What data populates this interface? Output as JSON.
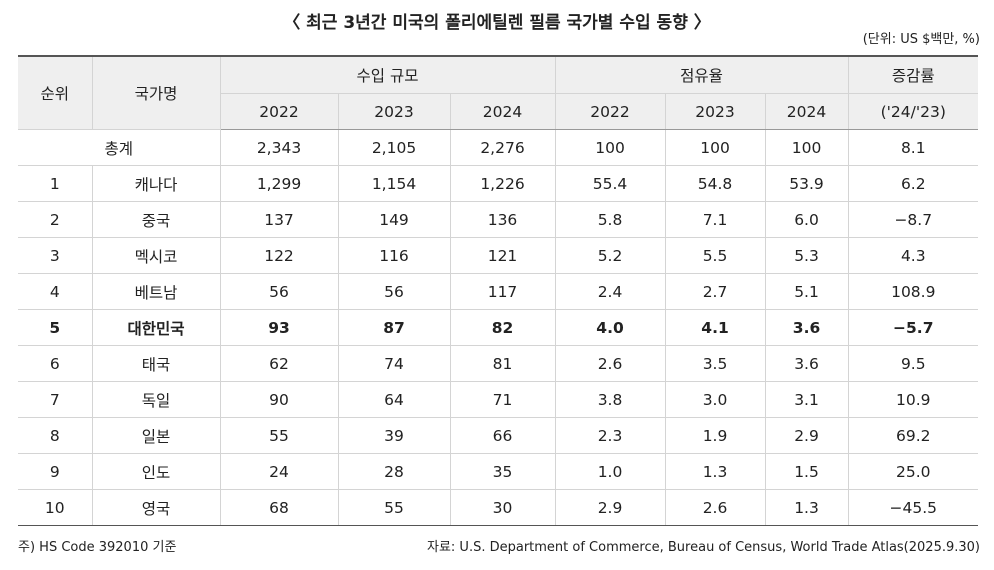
{
  "title": "〈 최근 3년간 미국의 폴리에틸렌 필름 국가별 수입 동향 〉",
  "unit": "(단위: US $백만, %)",
  "table": {
    "header": {
      "rank": "순위",
      "country": "국가명",
      "groups": [
        "수입 규모",
        "점유율",
        "증감률"
      ],
      "years": [
        "2022",
        "2023",
        "2024",
        "2022",
        "2023",
        "2024",
        "('24/'23)"
      ]
    },
    "total": {
      "label": "총계",
      "values": [
        "2,343",
        "2,105",
        "2,276",
        "100",
        "100",
        "100",
        "8.1"
      ]
    },
    "rows": [
      [
        "1",
        "캐나다",
        "1,299",
        "1,154",
        "1,226",
        "55.4",
        "54.8",
        "53.9",
        "6.2"
      ],
      [
        "2",
        "중국",
        "137",
        "149",
        "136",
        "5.8",
        "7.1",
        "6.0",
        "−8.7"
      ],
      [
        "3",
        "멕시코",
        "122",
        "116",
        "121",
        "5.2",
        "5.5",
        "5.3",
        "4.3"
      ],
      [
        "4",
        "베트남",
        "56",
        "56",
        "117",
        "2.4",
        "2.7",
        "5.1",
        "108.9"
      ],
      [
        "5",
        "대한민국",
        "93",
        "87",
        "82",
        "4.0",
        "4.1",
        "3.6",
        "−5.7"
      ],
      [
        "6",
        "태국",
        "62",
        "74",
        "81",
        "2.6",
        "3.5",
        "3.6",
        "9.5"
      ],
      [
        "7",
        "독일",
        "90",
        "64",
        "71",
        "3.8",
        "3.0",
        "3.1",
        "10.9"
      ],
      [
        "8",
        "일본",
        "55",
        "39",
        "66",
        "2.3",
        "1.9",
        "2.9",
        "69.2"
      ],
      [
        "9",
        "인도",
        "24",
        "28",
        "35",
        "1.0",
        "1.3",
        "1.5",
        "25.0"
      ],
      [
        "10",
        "영국",
        "68",
        "55",
        "30",
        "2.9",
        "2.6",
        "1.3",
        "−45.5"
      ]
    ]
  },
  "footnote": "주) HS Code 392010 기준",
  "source": "자료: U.S. Department of Commerce, Bureau of Census, World Trade Atlas(2025.9.30)"
}
